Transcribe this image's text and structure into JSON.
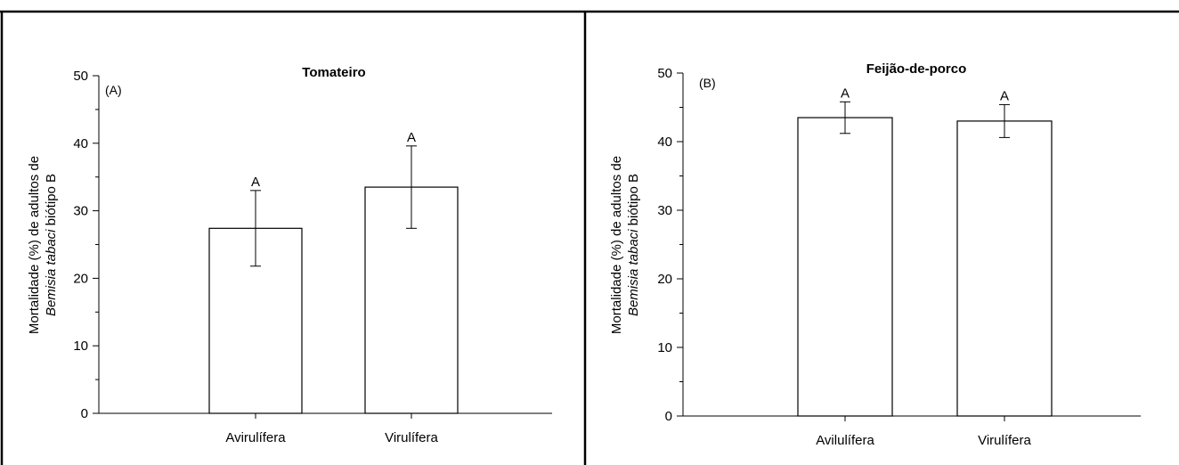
{
  "chart_data": [
    {
      "type": "bar",
      "panel_label": "(A)",
      "title": "Tomateiro",
      "ylabel_line1": "Mortalidade (%) de adultos de",
      "ylabel_line2_italic": "Bemisia tabaci",
      "ylabel_line2_rest": " biótipo B",
      "categories": [
        "Avirulífera",
        "Virulífera"
      ],
      "values": [
        27.4,
        33.5
      ],
      "errors": [
        5.6,
        6.1
      ],
      "significance": [
        "A",
        "A"
      ],
      "ylim": [
        0,
        50
      ],
      "yticks": [
        0,
        10,
        20,
        30,
        40,
        50
      ],
      "ytick_labels": [
        "0",
        "10",
        "20",
        "30",
        "40",
        "50"
      ],
      "grid": false
    },
    {
      "type": "bar",
      "panel_label": "(B)",
      "title": "Feijão-de-porco",
      "ylabel_line1": "Mortalidade (%) de adultos de",
      "ylabel_line2_italic": "Bemisia tabaci",
      "ylabel_line2_rest": " biótipo B",
      "categories": [
        "Avilulífera",
        "Virulífera"
      ],
      "values": [
        43.5,
        43.0
      ],
      "errors": [
        2.3,
        2.4
      ],
      "significance": [
        "A",
        "A"
      ],
      "ylim": [
        0,
        50
      ],
      "yticks": [
        0,
        10,
        20,
        30,
        40,
        50
      ],
      "ytick_labels": [
        "0",
        "10",
        "20",
        "30",
        "40",
        "50"
      ],
      "grid": false
    }
  ],
  "colors": {
    "bar_fill": "#ffffff",
    "stroke": "#000000",
    "panel_border": "#000000"
  }
}
